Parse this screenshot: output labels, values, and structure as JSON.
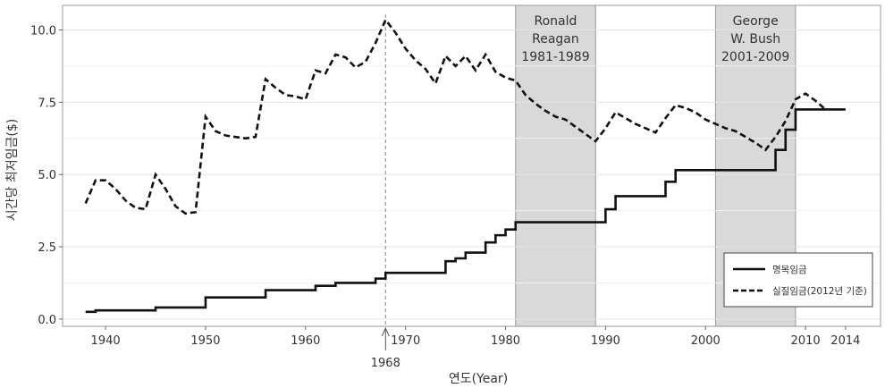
{
  "chart_data": {
    "type": "line",
    "xlabel": "연도(Year)",
    "ylabel": "시간당 최저임금($)",
    "xlim": [
      1935.7,
      2017.5
    ],
    "ylim": [
      -0.25,
      10.85
    ],
    "x_ticks": [
      1940,
      1950,
      1960,
      1970,
      1980,
      1990,
      2000,
      2010,
      2014
    ],
    "y_ticks": [
      0.0,
      2.5,
      5.0,
      7.5,
      10.0
    ],
    "y_tick_labels": [
      "0.0",
      "2.5",
      "5.0",
      "7.5",
      "10.0"
    ],
    "grid": true,
    "legend_position": "bottom-right",
    "annotations": {
      "marker_year": 1968,
      "marker_label": "1968",
      "shaded_periods": [
        {
          "start": 1981,
          "end": 1989,
          "lines": [
            "Ronald",
            "Reagan",
            "1981-1989"
          ]
        },
        {
          "start": 2001,
          "end": 2009,
          "lines": [
            "George",
            "W. Bush",
            "2001-2009"
          ]
        }
      ]
    },
    "series": [
      {
        "name": "명목임금",
        "style": "solid",
        "color": "#111111",
        "step": true,
        "points": [
          [
            1938,
            0.25
          ],
          [
            1939,
            0.3
          ],
          [
            1945,
            0.4
          ],
          [
            1950,
            0.75
          ],
          [
            1956,
            1.0
          ],
          [
            1961,
            1.15
          ],
          [
            1963,
            1.25
          ],
          [
            1967,
            1.4
          ],
          [
            1968,
            1.6
          ],
          [
            1974,
            2.0
          ],
          [
            1975,
            2.1
          ],
          [
            1976,
            2.3
          ],
          [
            1978,
            2.65
          ],
          [
            1979,
            2.9
          ],
          [
            1980,
            3.1
          ],
          [
            1981,
            3.35
          ],
          [
            1990,
            3.8
          ],
          [
            1991,
            4.25
          ],
          [
            1996,
            4.75
          ],
          [
            1997,
            5.15
          ],
          [
            2007,
            5.85
          ],
          [
            2008,
            6.55
          ],
          [
            2009,
            7.25
          ],
          [
            2014,
            7.25
          ]
        ]
      },
      {
        "name": "실질임금(2012년 기준)",
        "style": "dashed",
        "color": "#111111",
        "step": false,
        "points": [
          [
            1938,
            4.0
          ],
          [
            1939,
            4.8
          ],
          [
            1940,
            4.8
          ],
          [
            1941,
            4.5
          ],
          [
            1942,
            4.1
          ],
          [
            1943,
            3.85
          ],
          [
            1944,
            3.8
          ],
          [
            1945,
            5.0
          ],
          [
            1946,
            4.5
          ],
          [
            1947,
            3.9
          ],
          [
            1948,
            3.65
          ],
          [
            1949,
            3.7
          ],
          [
            1950,
            7.0
          ],
          [
            1951,
            6.5
          ],
          [
            1952,
            6.35
          ],
          [
            1953,
            6.3
          ],
          [
            1954,
            6.25
          ],
          [
            1955,
            6.3
          ],
          [
            1956,
            8.3
          ],
          [
            1957,
            8.0
          ],
          [
            1958,
            7.75
          ],
          [
            1959,
            7.7
          ],
          [
            1960,
            7.6
          ],
          [
            1961,
            8.6
          ],
          [
            1962,
            8.5
          ],
          [
            1963,
            9.15
          ],
          [
            1964,
            9.05
          ],
          [
            1965,
            8.7
          ],
          [
            1966,
            8.9
          ],
          [
            1967,
            9.55
          ],
          [
            1968,
            10.35
          ],
          [
            1969,
            9.9
          ],
          [
            1970,
            9.35
          ],
          [
            1971,
            8.95
          ],
          [
            1972,
            8.65
          ],
          [
            1973,
            8.15
          ],
          [
            1974,
            9.1
          ],
          [
            1975,
            8.75
          ],
          [
            1976,
            9.1
          ],
          [
            1977,
            8.6
          ],
          [
            1978,
            9.15
          ],
          [
            1979,
            8.55
          ],
          [
            1980,
            8.35
          ],
          [
            1981,
            8.25
          ],
          [
            1982,
            7.75
          ],
          [
            1983,
            7.45
          ],
          [
            1984,
            7.2
          ],
          [
            1985,
            7.0
          ],
          [
            1986,
            6.9
          ],
          [
            1987,
            6.65
          ],
          [
            1988,
            6.4
          ],
          [
            1989,
            6.15
          ],
          [
            1990,
            6.6
          ],
          [
            1991,
            7.15
          ],
          [
            1992,
            6.95
          ],
          [
            1993,
            6.75
          ],
          [
            1994,
            6.6
          ],
          [
            1995,
            6.45
          ],
          [
            1996,
            6.95
          ],
          [
            1997,
            7.4
          ],
          [
            1998,
            7.3
          ],
          [
            1999,
            7.15
          ],
          [
            2000,
            6.9
          ],
          [
            2001,
            6.75
          ],
          [
            2002,
            6.6
          ],
          [
            2003,
            6.5
          ],
          [
            2004,
            6.3
          ],
          [
            2005,
            6.1
          ],
          [
            2006,
            5.85
          ],
          [
            2007,
            6.3
          ],
          [
            2008,
            6.85
          ],
          [
            2009,
            7.6
          ],
          [
            2010,
            7.8
          ],
          [
            2011,
            7.55
          ],
          [
            2012,
            7.25
          ]
        ]
      }
    ]
  }
}
